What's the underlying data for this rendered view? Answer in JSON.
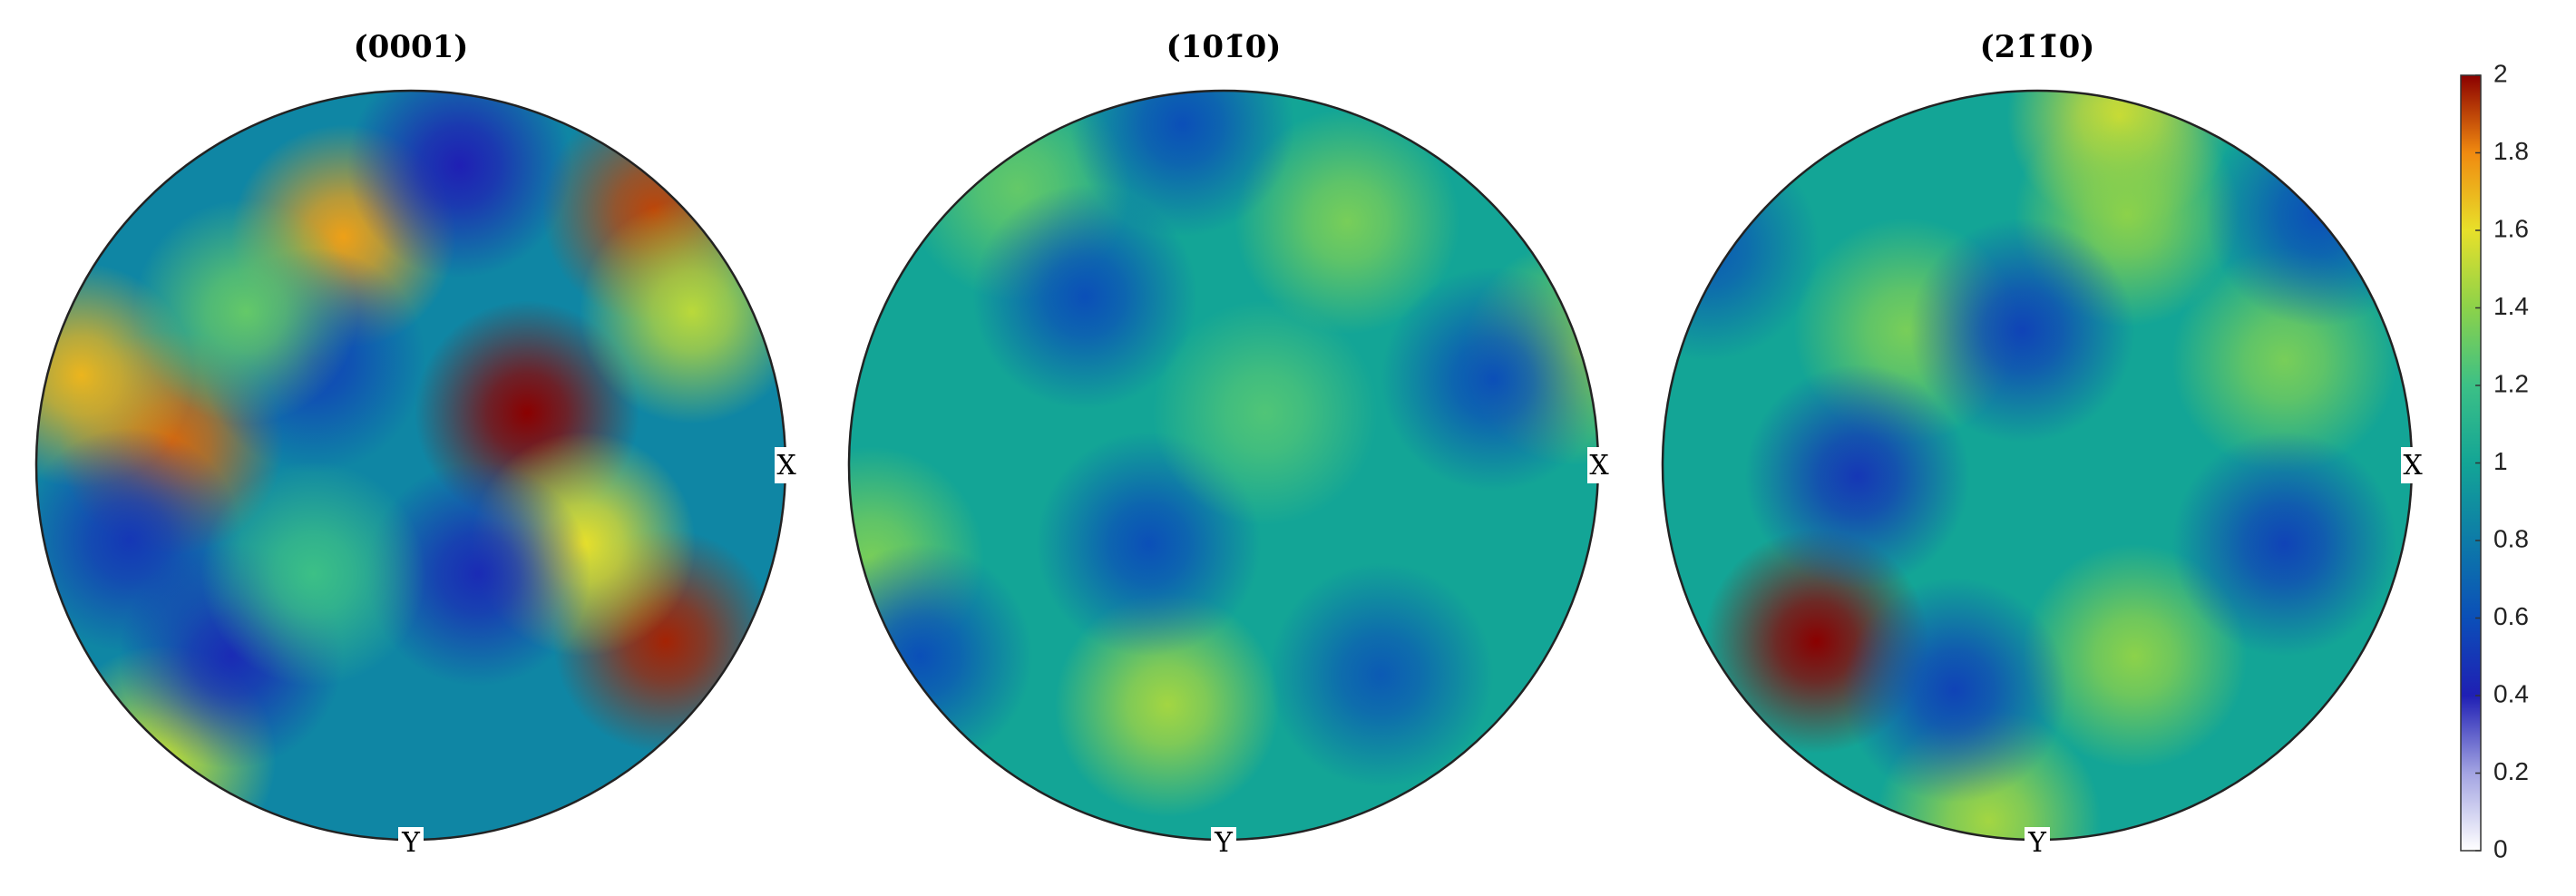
{
  "chart_data": {
    "type": "pole_figure",
    "colorbar": {
      "clim": [
        0,
        2
      ],
      "ticks": [
        0,
        0.2,
        0.4,
        0.6,
        0.8,
        1,
        1.2,
        1.4,
        1.6,
        1.8,
        2
      ],
      "colormap": [
        "#ffffff",
        "#a3a4e2",
        "#1f1fb4",
        "#0b4fb8",
        "#0d7ba8",
        "#13a596",
        "#3cc086",
        "#8cd24a",
        "#e8e02a",
        "#f08a10",
        "#8b0000"
      ]
    },
    "panels": [
      {
        "title": "(0001)",
        "x_label": "X",
        "y_label": "Y",
        "background": 0.85,
        "maxima": [
          {
            "x": 0.31,
            "y": 0.14,
            "value": 2.0
          },
          {
            "x": -0.64,
            "y": 0.06,
            "value": 1.85
          },
          {
            "x": 0.68,
            "y": -0.47,
            "value": 1.95
          },
          {
            "x": 0.65,
            "y": 0.68,
            "value": 1.9
          },
          {
            "x": -0.18,
            "y": 0.61,
            "value": 1.75
          },
          {
            "x": -0.88,
            "y": 0.24,
            "value": 1.7
          },
          {
            "x": 0.46,
            "y": -0.21,
            "value": 1.6
          },
          {
            "x": 0.75,
            "y": 0.41,
            "value": 1.5
          },
          {
            "x": -0.66,
            "y": -0.78,
            "value": 1.5
          },
          {
            "x": 0.13,
            "y": 0.8,
            "value": 0.4
          },
          {
            "x": 0.18,
            "y": -0.29,
            "value": 0.45
          },
          {
            "x": -0.48,
            "y": -0.51,
            "value": 0.45
          },
          {
            "x": -0.75,
            "y": -0.2,
            "value": 0.5
          },
          {
            "x": -0.26,
            "y": 0.28,
            "value": 0.55
          },
          {
            "x": -0.44,
            "y": 0.41,
            "value": 1.3
          },
          {
            "x": -0.26,
            "y": -0.29,
            "value": 1.2
          }
        ]
      },
      {
        "title": "(101̄0)",
        "x_label": "X",
        "y_label": "Y",
        "background": 1.0,
        "maxima": [
          {
            "x": -0.15,
            "y": -0.64,
            "value": 1.45
          },
          {
            "x": 0.33,
            "y": 0.65,
            "value": 1.35
          },
          {
            "x": -0.55,
            "y": 0.74,
            "value": 1.3
          },
          {
            "x": 0.94,
            "y": 0.3,
            "value": 1.4
          },
          {
            "x": -0.94,
            "y": -0.25,
            "value": 1.35
          },
          {
            "x": -0.37,
            "y": 0.45,
            "value": 0.6
          },
          {
            "x": -0.2,
            "y": -0.21,
            "value": 0.6
          },
          {
            "x": 0.72,
            "y": 0.23,
            "value": 0.6
          },
          {
            "x": -0.81,
            "y": -0.51,
            "value": 0.6
          },
          {
            "x": 0.42,
            "y": -0.56,
            "value": 0.65
          },
          {
            "x": -0.11,
            "y": 0.91,
            "value": 0.6
          },
          {
            "x": 0.11,
            "y": 0.14,
            "value": 1.25
          }
        ]
      },
      {
        "title": "(21̄1̄0)",
        "x_label": "X",
        "y_label": "Y",
        "background": 1.0,
        "maxima": [
          {
            "x": -0.59,
            "y": -0.47,
            "value": 2.0
          },
          {
            "x": 0.22,
            "y": 0.93,
            "value": 1.55
          },
          {
            "x": 0.24,
            "y": 0.67,
            "value": 1.4
          },
          {
            "x": -0.35,
            "y": 0.36,
            "value": 1.35
          },
          {
            "x": 0.66,
            "y": 0.28,
            "value": 1.35
          },
          {
            "x": 0.26,
            "y": -0.51,
            "value": 1.4
          },
          {
            "x": -0.13,
            "y": -0.95,
            "value": 1.45
          },
          {
            "x": -0.48,
            "y": -0.03,
            "value": 0.5
          },
          {
            "x": -0.04,
            "y": 0.36,
            "value": 0.55
          },
          {
            "x": 0.66,
            "y": -0.21,
            "value": 0.55
          },
          {
            "x": -0.22,
            "y": -0.6,
            "value": 0.55
          },
          {
            "x": -0.88,
            "y": 0.58,
            "value": 0.65
          },
          {
            "x": 0.75,
            "y": 0.67,
            "value": 0.6
          }
        ]
      }
    ]
  }
}
